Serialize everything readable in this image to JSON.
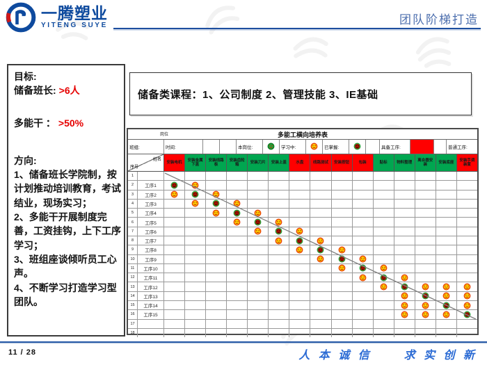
{
  "header": {
    "logo_title": "一腾塑业",
    "logo_sub": "YITENG SUYE",
    "page_title": "团队阶梯打造"
  },
  "left_panel": {
    "goal_label": "目标:",
    "goal1": {
      "label": "储备班长:",
      "value": ">6人"
    },
    "goal2": {
      "label": "多能干  ：",
      "value": ">50%"
    },
    "direction_label": "方向:",
    "items": [
      "1、储备班长学院制，按计划推动培训教育，考试结业，现场实习；",
      "2、多能干开展制度完善，工资挂钩，上下工序学习；",
      "3、班组座谈倾听员工心声。",
      "4、不断学习打造学习型团队。"
    ]
  },
  "course_box": {
    "text": "储备类课程：1、公司制度  2、管理技能  3、IE基础"
  },
  "table": {
    "title": "多能工横向培养表",
    "corner_label": "岗位",
    "legend": {
      "team": "班组:",
      "time": "时间:",
      "current": "本岗位:",
      "learning": "学习中:",
      "mastered": "已掌握:",
      "qualified": "具备工序:",
      "normal": "普通工序:"
    },
    "header": {
      "num": "序号",
      "name": "姓名"
    },
    "columns": [
      {
        "label": "安装电机",
        "color": "red"
      },
      {
        "label": "安装金属下盖",
        "color": "green"
      },
      {
        "label": "安装线路板",
        "color": "green"
      },
      {
        "label": "安装齿轮箱",
        "color": "green"
      },
      {
        "label": "安装刀片",
        "color": "green"
      },
      {
        "label": "安装上盖",
        "color": "green"
      },
      {
        "label": "水盘",
        "color": "red"
      },
      {
        "label": "线路测试",
        "color": "red"
      },
      {
        "label": "安装按钮",
        "color": "red"
      },
      {
        "label": "包装",
        "color": "red"
      },
      {
        "label": "贴标",
        "color": "green"
      },
      {
        "label": "物料整理",
        "color": "green"
      },
      {
        "label": "离合器安装",
        "color": "green"
      },
      {
        "label": "安装底座",
        "color": "green"
      },
      {
        "label": "安装手调装置",
        "color": "red"
      }
    ],
    "rows": [
      {
        "num": "1",
        "name": "",
        "faces": "..............."
      },
      {
        "num": "2",
        "name": "工序1",
        "faces": "GY............."
      },
      {
        "num": "3",
        "name": "工序2",
        "faces": "YGY............"
      },
      {
        "num": "4",
        "name": "工序3",
        "faces": ".YGY..........."
      },
      {
        "num": "5",
        "name": "工序4",
        "faces": "..YGY.........."
      },
      {
        "num": "6",
        "name": "工序5",
        "faces": "...YGY........."
      },
      {
        "num": "7",
        "name": "工序6",
        "faces": "....YGY........"
      },
      {
        "num": "8",
        "name": "工序7",
        "faces": ".....YGY......."
      },
      {
        "num": "9",
        "name": "工序8",
        "faces": "......YGY......"
      },
      {
        "num": "10",
        "name": "工序9",
        "faces": ".......YGY....."
      },
      {
        "num": "11",
        "name": "工序10",
        "faces": "........YGY...."
      },
      {
        "num": "12",
        "name": "工序11",
        "faces": ".........YGY..."
      },
      {
        "num": "13",
        "name": "工序12",
        "faces": "..........YGYYY"
      },
      {
        "num": "14",
        "name": "工序13",
        "faces": "...........YGYY"
      },
      {
        "num": "15",
        "name": "工序14",
        "faces": "...........YYGY"
      },
      {
        "num": "16",
        "name": "工序15",
        "faces": "...........YYYG"
      },
      {
        "num": "17",
        "name": "",
        "faces": "..............."
      },
      {
        "num": "18",
        "name": "",
        "faces": "..............."
      }
    ]
  },
  "footer": {
    "page_number": "11 / 28",
    "slogan_left": "人 本 诚 信",
    "slogan_right": "求 实 创 新"
  },
  "colors": {
    "brand_blue": "#0e4a9e",
    "title_blue": "#4d6fae",
    "accent_red": "#e60000",
    "table_green": "#00a650",
    "table_red": "#ff0000",
    "face_yellow": "#ffd400",
    "face_ring_red": "#e8470b",
    "face_ring_green": "#2da23c",
    "slogan_blue": "#2a6ad4"
  }
}
